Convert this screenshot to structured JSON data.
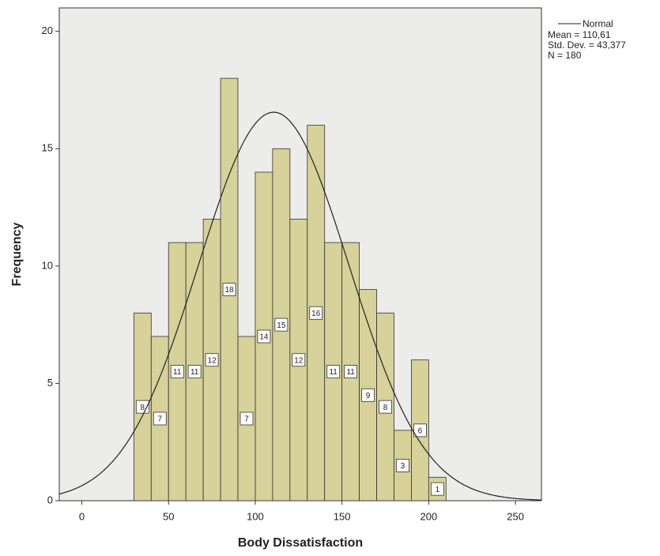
{
  "chart_data": {
    "type": "histogram",
    "x_label": "Body Dissatisfaction",
    "y_label": "Frequency",
    "bins": [
      30,
      40,
      50,
      60,
      70,
      80,
      90,
      100,
      110,
      120,
      130,
      140,
      150,
      160,
      170,
      180,
      190,
      200,
      210
    ],
    "values": [
      8,
      7,
      11,
      11,
      12,
      18,
      7,
      14,
      15,
      12,
      16,
      11,
      11,
      9,
      8,
      3,
      6,
      1
    ],
    "color": "#d4cc8c",
    "xlim": [
      -13,
      265
    ],
    "xticks": [
      0,
      50,
      100,
      150,
      200,
      250
    ],
    "ylim": [
      0,
      21
    ],
    "yticks": [
      0,
      5,
      10,
      15,
      20
    ],
    "grid": false,
    "legend": "Normal",
    "stats": [
      {
        "value": 110.61,
        "label": "Mean = 110,61"
      },
      {
        "value": 43.377,
        "label": "Std. Dev. = 43,377"
      },
      {
        "value": 180,
        "label": "N = 180"
      }
    ]
  }
}
